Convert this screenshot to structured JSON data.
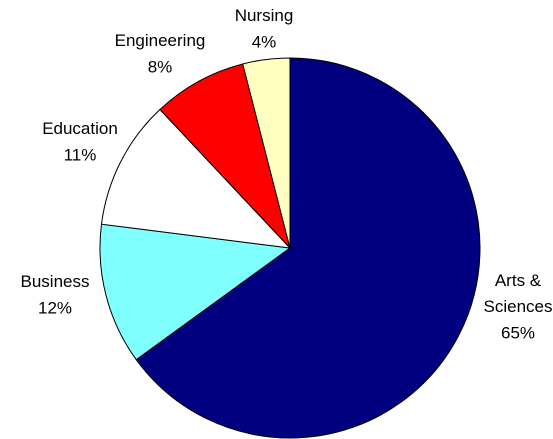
{
  "chart_data": {
    "type": "pie",
    "categories": [
      "Arts & Sciences",
      "Business",
      "Education",
      "Engineering",
      "Nursing"
    ],
    "values": [
      65,
      12,
      11,
      8,
      4
    ],
    "value_labels": [
      "65%",
      "12%",
      "11%",
      "8%",
      "4%"
    ],
    "colors": [
      "#000080",
      "#80ffff",
      "#ffffff",
      "#ff0000",
      "#ffffc0"
    ]
  }
}
